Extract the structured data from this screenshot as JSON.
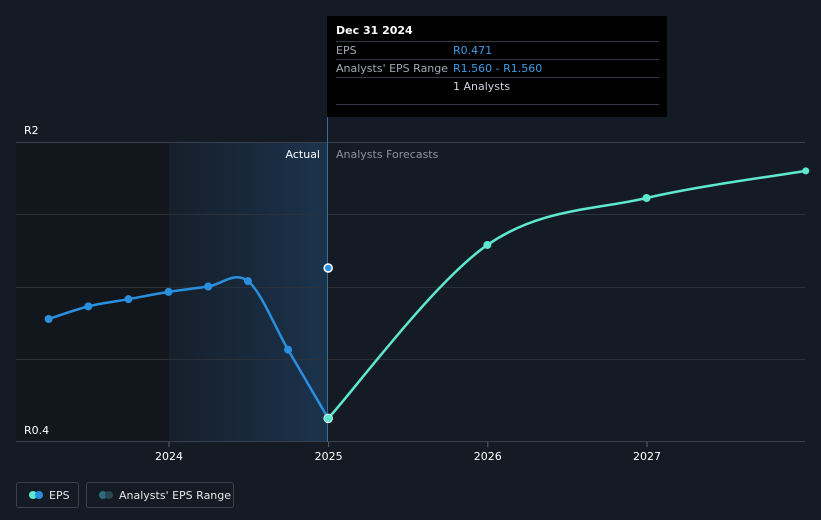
{
  "chart_data": {
    "type": "line",
    "y_axis": {
      "tick_labels": [
        "R2",
        "R0.4"
      ],
      "ylim": [
        0.4,
        2.0
      ],
      "grid": true
    },
    "x_axis": {
      "tick_labels": [
        "2024",
        "2025",
        "2026",
        "2027"
      ]
    },
    "region_labels": {
      "actual": "Actual",
      "forecast": "Analysts Forecasts"
    },
    "series": [
      {
        "name": "EPS",
        "color": "#2b8fdf",
        "points": [
          [
            "2023-03-31",
            1.02
          ],
          [
            "2023-06-30",
            1.09
          ],
          [
            "2023-09-30",
            1.13
          ],
          [
            "2023-12-31",
            1.17
          ],
          [
            "2024-03-31",
            1.2
          ],
          [
            "2024-06-30",
            1.23
          ],
          [
            "2024-09-30",
            0.85
          ],
          [
            "2024-12-31",
            0.47
          ]
        ]
      },
      {
        "name": "Analysts Forecast",
        "color": "#5ee8cf",
        "points": [
          [
            "2024-12-31",
            0.47
          ],
          [
            "2025-12-31",
            1.43
          ],
          [
            "2026-12-31",
            1.69
          ],
          [
            "2027-12-31",
            1.84
          ]
        ]
      }
    ],
    "analysts_eps_range_marker": {
      "date": "2024-12-31",
      "value": 1.56
    },
    "legend": {
      "placement": "bottom-left",
      "items": [
        "EPS",
        "Analysts' EPS Range"
      ]
    }
  },
  "tooltip": {
    "date": "Dec 31 2024",
    "rows": [
      {
        "label": "EPS",
        "value": "R0.471"
      },
      {
        "label": "Analysts' EPS Range",
        "value": "R1.560 - R1.560"
      },
      {
        "label": "",
        "value": "1 Analysts"
      }
    ]
  },
  "colors": {
    "background": "#151b24",
    "actual_band": "#1a2e44",
    "eps": "#2b8fdf",
    "forecast": "#5ee8cf",
    "range": "#2f6c7a"
  }
}
